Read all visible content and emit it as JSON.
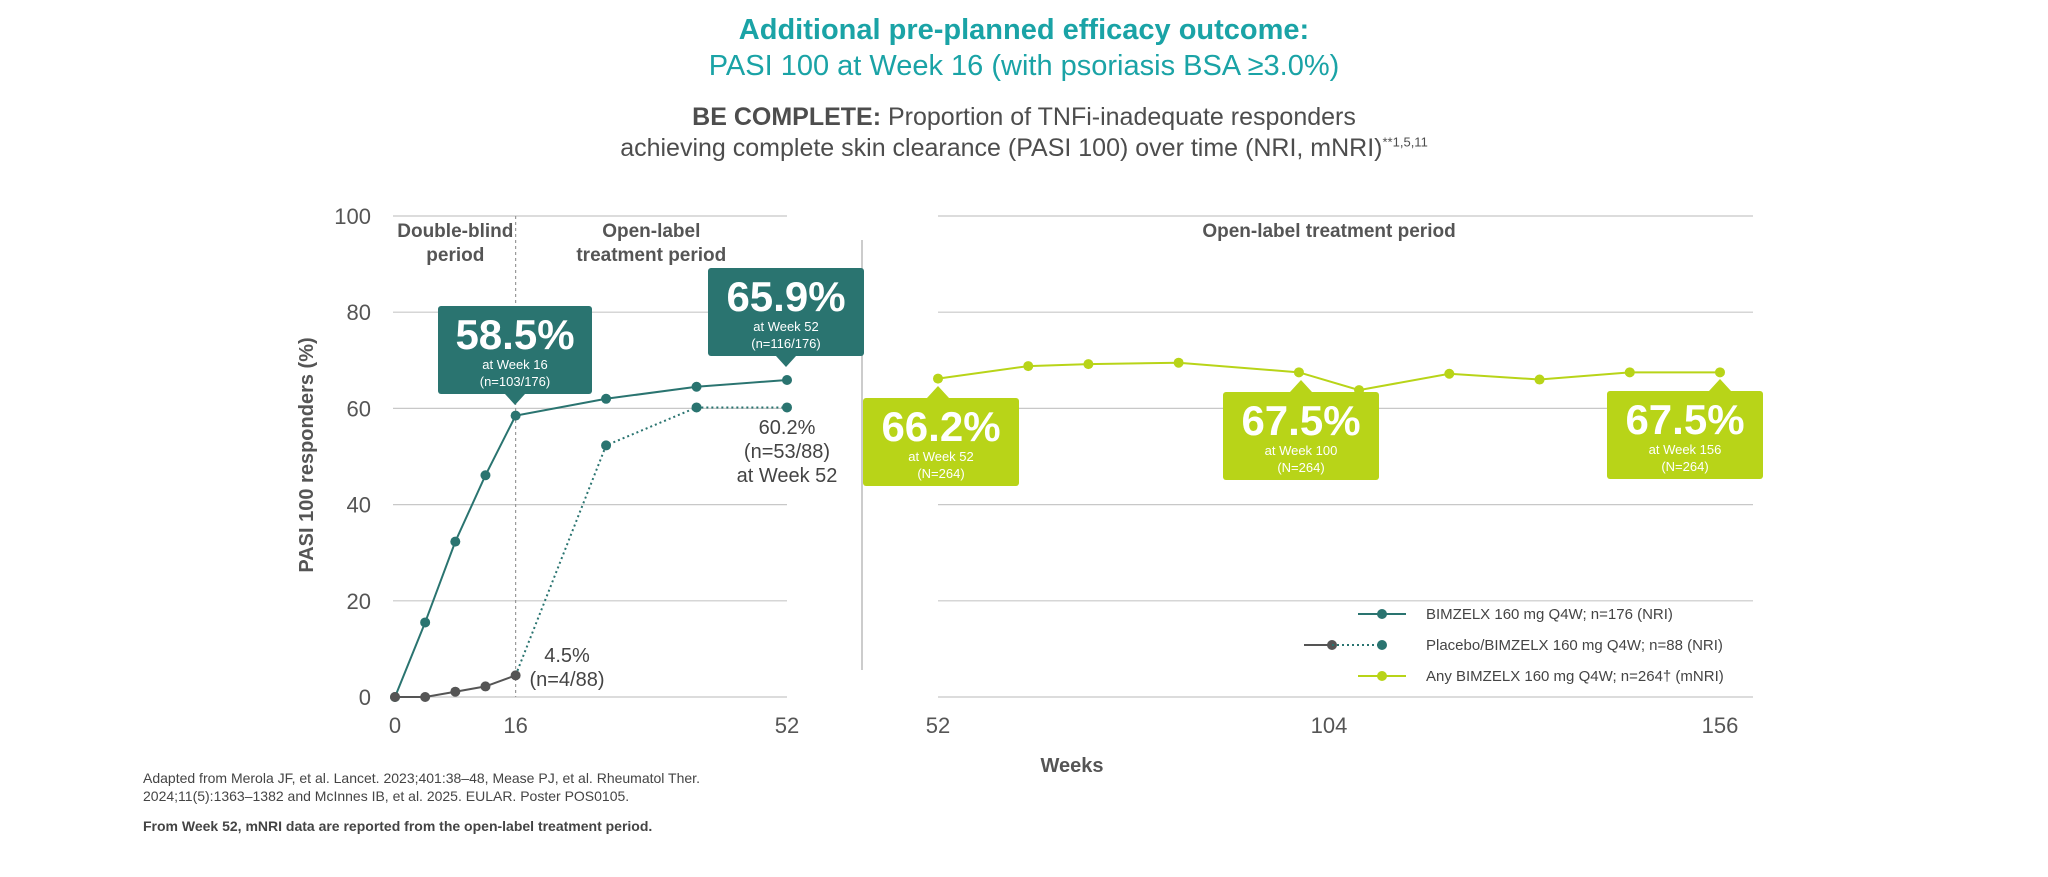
{
  "header": {
    "title_line1": "Additional pre-planned efficacy outcome:",
    "title_line2": "PASI 100 at Week 16 (with psoriasis BSA ≥3.0%)",
    "subtitle_bold": "BE COMPLETE:",
    "subtitle_line1_rest": " Proportion of TNFi-inadequate responders",
    "subtitle_line2": "achieving complete skin clearance (PASI 100) over time (NRI, mNRI)",
    "subtitle_sup": "**1,5,11"
  },
  "chart_data": {
    "type": "line",
    "ylabel": "PASI 100 responders (%)",
    "xlabel": "Weeks",
    "ylim": [
      0,
      100
    ],
    "yticks": [
      0,
      20,
      40,
      60,
      80,
      100
    ],
    "grid": true,
    "legend_position": "bottom-right",
    "panels": [
      {
        "xlim": [
          0,
          52
        ],
        "xticks": [
          0,
          16,
          52
        ],
        "period_labels": [
          {
            "lines": [
              "Double-blind",
              "period"
            ],
            "x": 8
          },
          {
            "lines": [
              "Open-label",
              "treatment period"
            ],
            "x": 34
          }
        ],
        "divider_week": 16
      },
      {
        "xlim": [
          52,
          156
        ],
        "xticks": [
          52,
          104,
          156
        ],
        "period_labels": [
          {
            "lines": [
              "Open-label treatment period"
            ],
            "x": 104
          }
        ]
      }
    ],
    "series": [
      {
        "name": "BIMZELX 160 mg Q4W; n=176 (NRI)",
        "color": "#2a7470",
        "style": "solid",
        "panel": 0,
        "x": [
          0,
          4,
          8,
          12,
          16,
          28,
          40,
          52
        ],
        "y": [
          0,
          15.5,
          32.3,
          46.1,
          58.5,
          62.0,
          64.5,
          65.9
        ]
      },
      {
        "name": "Placebo/BIMZELX 160 mg Q4W; n=88 (NRI)",
        "color": "#2a7470",
        "placebo_color": "#555555",
        "style": "dotted-after-16",
        "panel": 0,
        "x": [
          0,
          4,
          8,
          12,
          16,
          28,
          40,
          52
        ],
        "y": [
          0,
          0,
          1.1,
          2.2,
          4.5,
          52.3,
          60.2,
          60.2
        ]
      },
      {
        "name": "Any BIMZELX 160 mg Q4W; n=264† (mNRI)",
        "color": "#b8d418",
        "style": "solid",
        "panel": 1,
        "x": [
          52,
          64,
          72,
          84,
          100,
          108,
          120,
          132,
          144,
          156
        ],
        "y": [
          66.2,
          68.8,
          69.2,
          69.5,
          67.5,
          63.8,
          67.2,
          66.0,
          67.5,
          67.5
        ]
      }
    ],
    "callouts": [
      {
        "value": "58.5%",
        "line1": "at Week 16",
        "line2": "(n=103/176)",
        "color": "#2a7470"
      },
      {
        "value": "65.9%",
        "line1": "at Week 52",
        "line2": "(n=116/176)",
        "color": "#2a7470"
      },
      {
        "value": "66.2%",
        "line1": "at Week 52",
        "line2": "(N=264)",
        "color": "#b8d418"
      },
      {
        "value": "67.5%",
        "line1": "at Week 100",
        "line2": "(N=264)",
        "color": "#b8d418"
      },
      {
        "value": "67.5%",
        "line1": "at Week 156",
        "line2": "(N=264)",
        "color": "#b8d418"
      }
    ],
    "annotations": [
      {
        "lines": [
          "60.2%",
          "(n=53/88)",
          "at Week 52"
        ]
      },
      {
        "lines": [
          "4.5%",
          "(n=4/88)"
        ]
      }
    ]
  },
  "footnotes": {
    "source": "Adapted from Merola JF, et al. Lancet. 2023;401:38–48, Mease PJ, et al. Rheumatol Ther. 2024;11(5):1363–1382 and McInnes IB, et al. 2025. EULAR. Poster POS0105.",
    "note": "From Week 52, mNRI data are reported from the open-label treatment period."
  }
}
